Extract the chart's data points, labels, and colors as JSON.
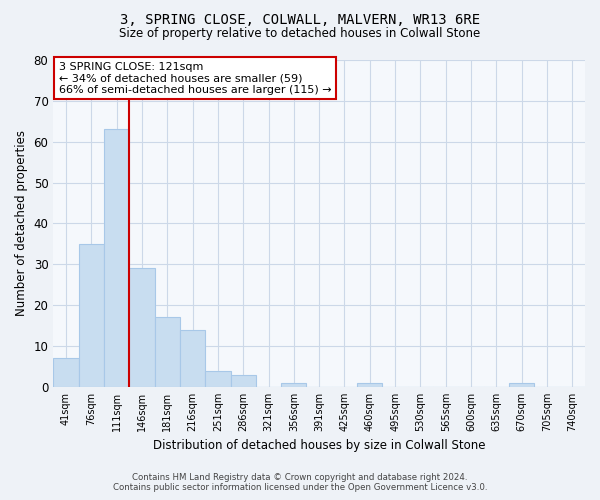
{
  "title": "3, SPRING CLOSE, COLWALL, MALVERN, WR13 6RE",
  "subtitle": "Size of property relative to detached houses in Colwall Stone",
  "xlabel": "Distribution of detached houses by size in Colwall Stone",
  "ylabel": "Number of detached properties",
  "bin_labels": [
    "41sqm",
    "76sqm",
    "111sqm",
    "146sqm",
    "181sqm",
    "216sqm",
    "251sqm",
    "286sqm",
    "321sqm",
    "356sqm",
    "391sqm",
    "425sqm",
    "460sqm",
    "495sqm",
    "530sqm",
    "565sqm",
    "600sqm",
    "635sqm",
    "670sqm",
    "705sqm",
    "740sqm"
  ],
  "bar_values": [
    7,
    35,
    63,
    29,
    17,
    14,
    4,
    3,
    0,
    1,
    0,
    0,
    1,
    0,
    0,
    0,
    0,
    0,
    1,
    0,
    0
  ],
  "bar_color": "#c8ddf0",
  "bar_edge_color": "#a8c8e8",
  "vline_x_index": 2,
  "vline_color": "#cc0000",
  "ylim": [
    0,
    80
  ],
  "yticks": [
    0,
    10,
    20,
    30,
    40,
    50,
    60,
    70,
    80
  ],
  "annotation_text": "3 SPRING CLOSE: 121sqm\n← 34% of detached houses are smaller (59)\n66% of semi-detached houses are larger (115) →",
  "annotation_box_color": "#ffffff",
  "annotation_box_edge": "#cc0000",
  "footer_line1": "Contains HM Land Registry data © Crown copyright and database right 2024.",
  "footer_line2": "Contains public sector information licensed under the Open Government Licence v3.0.",
  "background_color": "#eef2f7",
  "plot_background_color": "#f5f8fc",
  "grid_color": "#ccd8e8"
}
